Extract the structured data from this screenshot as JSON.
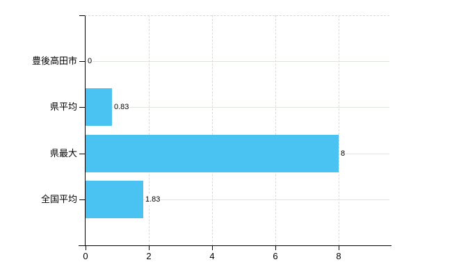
{
  "chart_data": {
    "type": "bar",
    "orientation": "horizontal",
    "title": "",
    "xlabel": "",
    "ylabel": "",
    "categories": [
      "豊後高田市",
      "県平均",
      "県最大",
      "全国平均"
    ],
    "values": [
      0,
      0.83,
      8,
      1.83
    ],
    "value_labels": [
      "0",
      "0.83",
      "8",
      "1.83"
    ],
    "xlim": [
      0,
      9.6
    ],
    "x_ticks": [
      0,
      2,
      4,
      6,
      8
    ],
    "x_tick_labels": [
      "0",
      "2",
      "4",
      "6",
      "8"
    ],
    "grid": true,
    "legend": false,
    "bar_color": "#4ac2f2",
    "axis_color": "#000000",
    "h_gridline_color": "#dde5dd",
    "v_gridline_color": "#dadada",
    "text_color": "#000000",
    "background_color": "#ffffff"
  }
}
